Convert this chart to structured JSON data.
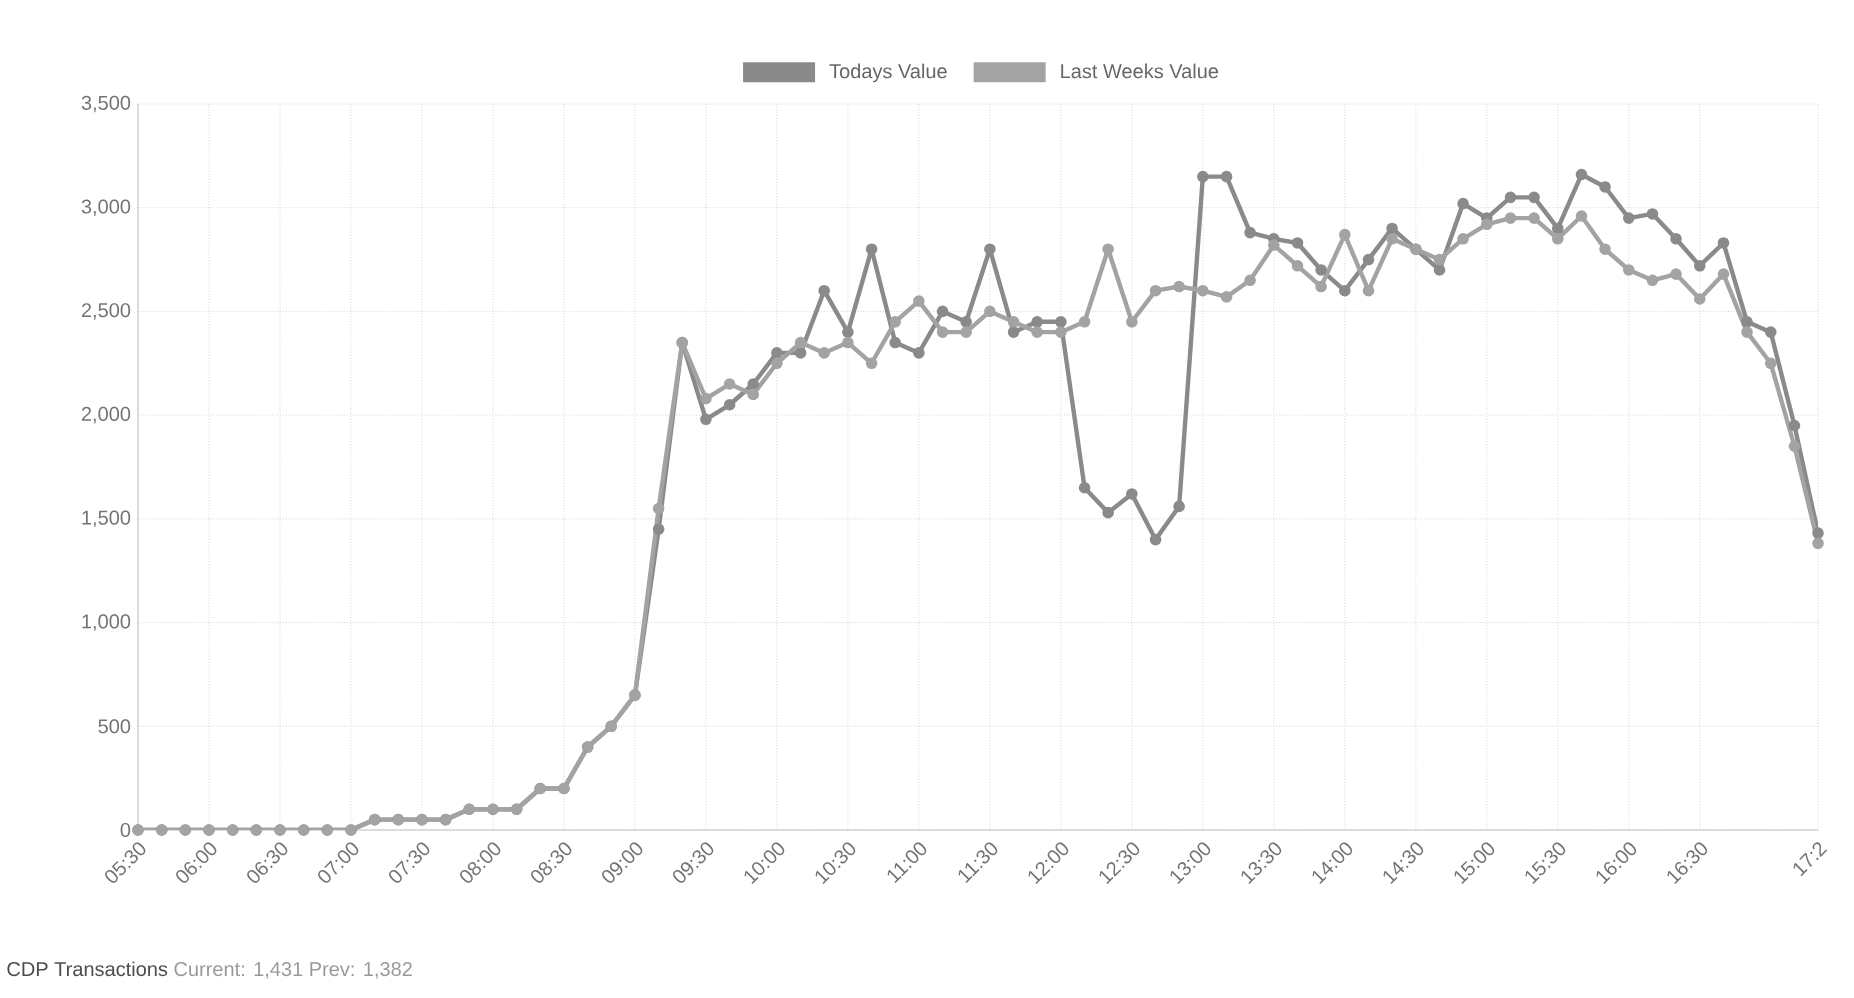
{
  "chart_data": {
    "type": "line",
    "x": [
      5.5,
      5.667,
      5.833,
      6,
      6.167,
      6.333,
      6.5,
      6.667,
      6.833,
      7,
      7.167,
      7.333,
      7.5,
      7.667,
      7.833,
      8,
      8.167,
      8.333,
      8.5,
      8.667,
      8.833,
      9,
      9.167,
      9.333,
      9.5,
      9.667,
      9.833,
      10,
      10.167,
      10.333,
      10.5,
      10.667,
      10.833,
      11,
      11.167,
      11.333,
      11.5,
      11.667,
      11.833,
      12,
      12.167,
      12.333,
      12.5,
      12.667,
      12.833,
      13,
      13.167,
      13.333,
      13.5,
      13.667,
      13.833,
      14,
      14.167,
      14.333,
      14.5,
      14.667,
      14.833,
      15,
      15.167,
      15.333,
      15.5,
      15.667,
      15.833,
      16,
      16.167,
      16.333,
      16.5,
      16.667,
      16.833,
      17,
      17.167,
      17.333
    ],
    "series": [
      {
        "name": "Todays Value",
        "color": "#8a8a8a",
        "values": [
          0,
          0,
          0,
          0,
          0,
          0,
          0,
          0,
          0,
          0,
          50,
          50,
          50,
          50,
          100,
          100,
          100,
          200,
          200,
          400,
          500,
          650,
          1450,
          2350,
          1980,
          2050,
          2150,
          2300,
          2300,
          2600,
          2400,
          2800,
          2350,
          2300,
          2500,
          2450,
          2800,
          2400,
          2450,
          2450,
          1650,
          1530,
          1620,
          1400,
          1560,
          3150,
          3150,
          2880,
          2850,
          2830,
          2700,
          2600,
          2750,
          2900,
          2800,
          2700,
          3020,
          2950,
          3050,
          3050,
          2900,
          3160,
          3100,
          2950,
          2970,
          2850,
          2720,
          2830,
          2450,
          2400,
          1950,
          1431
        ]
      },
      {
        "name": "Last Weeks Value",
        "color": "#a3a3a3",
        "values": [
          0,
          0,
          0,
          0,
          0,
          0,
          0,
          0,
          0,
          0,
          50,
          50,
          50,
          50,
          100,
          100,
          100,
          200,
          200,
          400,
          500,
          650,
          1550,
          2350,
          2080,
          2150,
          2100,
          2250,
          2350,
          2300,
          2350,
          2250,
          2450,
          2550,
          2400,
          2400,
          2500,
          2450,
          2400,
          2400,
          2450,
          2800,
          2450,
          2600,
          2620,
          2600,
          2570,
          2650,
          2820,
          2720,
          2620,
          2870,
          2600,
          2850,
          2800,
          2750,
          2850,
          2920,
          2950,
          2950,
          2850,
          2960,
          2800,
          2700,
          2650,
          2680,
          2560,
          2680,
          2400,
          2250,
          1850,
          1382
        ]
      }
    ],
    "xlim": [
      5.5,
      17.333
    ],
    "xticks": [
      {
        "value": 5.5,
        "label": "05:30"
      },
      {
        "value": 6,
        "label": "06:00"
      },
      {
        "value": 6.5,
        "label": "06:30"
      },
      {
        "value": 7,
        "label": "07:00"
      },
      {
        "value": 7.5,
        "label": "07:30"
      },
      {
        "value": 8,
        "label": "08:00"
      },
      {
        "value": 8.5,
        "label": "08:30"
      },
      {
        "value": 9,
        "label": "09:00"
      },
      {
        "value": 9.5,
        "label": "09:30"
      },
      {
        "value": 10,
        "label": "10:00"
      },
      {
        "value": 10.5,
        "label": "10:30"
      },
      {
        "value": 11,
        "label": "11:00"
      },
      {
        "value": 11.5,
        "label": "11:30"
      },
      {
        "value": 12,
        "label": "12:00"
      },
      {
        "value": 12.5,
        "label": "12:30"
      },
      {
        "value": 13,
        "label": "13:00"
      },
      {
        "value": 13.5,
        "label": "13:30"
      },
      {
        "value": 14,
        "label": "14:00"
      },
      {
        "value": 14.5,
        "label": "14:30"
      },
      {
        "value": 15,
        "label": "15:00"
      },
      {
        "value": 15.5,
        "label": "15:30"
      },
      {
        "value": 16,
        "label": "16:00"
      },
      {
        "value": 16.5,
        "label": "16:30"
      },
      {
        "value": 17.333,
        "label": "17:2"
      }
    ],
    "ylim": [
      0,
      3500
    ],
    "yticks": [
      0,
      500,
      {
        "value": 1000,
        "label": "1,000"
      },
      {
        "value": 1500,
        "label": "1,500"
      },
      {
        "value": 2000,
        "label": "2,000"
      },
      {
        "value": 2500,
        "label": "2,500"
      },
      {
        "value": 3000,
        "label": "3,000"
      },
      {
        "value": 3500,
        "label": "3,500"
      }
    ],
    "grid": true,
    "legend": "top",
    "marker": "circle",
    "line_style": "solid",
    "annotations": [
      "CDP Transactions",
      "Current: 1,431 Prev: 1,382"
    ]
  }
}
